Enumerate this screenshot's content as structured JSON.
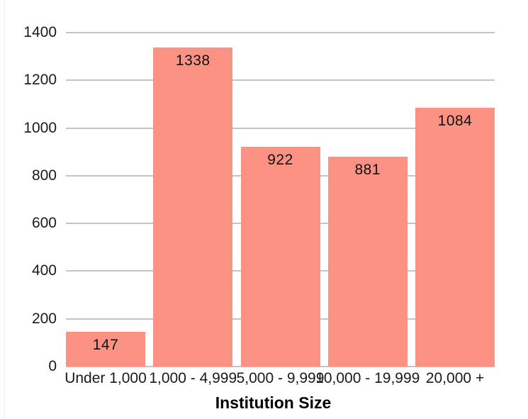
{
  "chart_data": {
    "type": "bar",
    "xlabel": "Institution Size",
    "categories": [
      "Under 1,000",
      "1,000 - 4,999",
      "5,000 - 9,999",
      "10,000 - 19,999",
      "20,000 +"
    ],
    "values": [
      147,
      1338,
      922,
      881,
      1084
    ],
    "yticks": [
      0,
      200,
      400,
      600,
      800,
      1000,
      1200,
      1400
    ],
    "ylim": [
      0,
      1400
    ],
    "grid": true,
    "legend": false,
    "value_label_position": "inside-top",
    "colors": {
      "bar": "#fb9283",
      "gridline": "#c4c4c4",
      "text": "#1a1a1a"
    }
  }
}
